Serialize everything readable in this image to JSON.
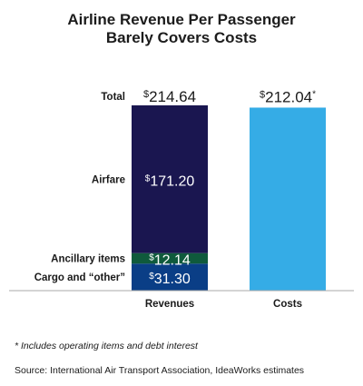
{
  "title_line1": "Airline Revenue Per Passenger",
  "title_line2": "Barely Covers Costs",
  "footnote": "* Includes operating items and debt interest",
  "source": "Source: International Air Transport Association, IdeaWorks estimates",
  "chart_data": {
    "type": "bar",
    "stacked": true,
    "categories": [
      "Revenues",
      "Costs"
    ],
    "ylim": [
      0,
      214.64
    ],
    "grid": false,
    "series": [
      {
        "name": "Cargo and “other”",
        "color": "#0a3e86",
        "values": [
          31.3,
          null
        ],
        "label": "31.30"
      },
      {
        "name": "Ancillary items",
        "color": "#0f5a3c",
        "values": [
          12.14,
          null
        ],
        "label": "12.14"
      },
      {
        "name": "Airfare",
        "color": "#1a1650",
        "values": [
          171.2,
          null
        ],
        "label": "171.20"
      },
      {
        "name": "",
        "color": "#35ace6",
        "values": [
          null,
          212.04
        ],
        "label": "212.04",
        "suffix": "*"
      }
    ],
    "total": {
      "name": "Total",
      "value": 214.64,
      "label": "214.64"
    }
  }
}
